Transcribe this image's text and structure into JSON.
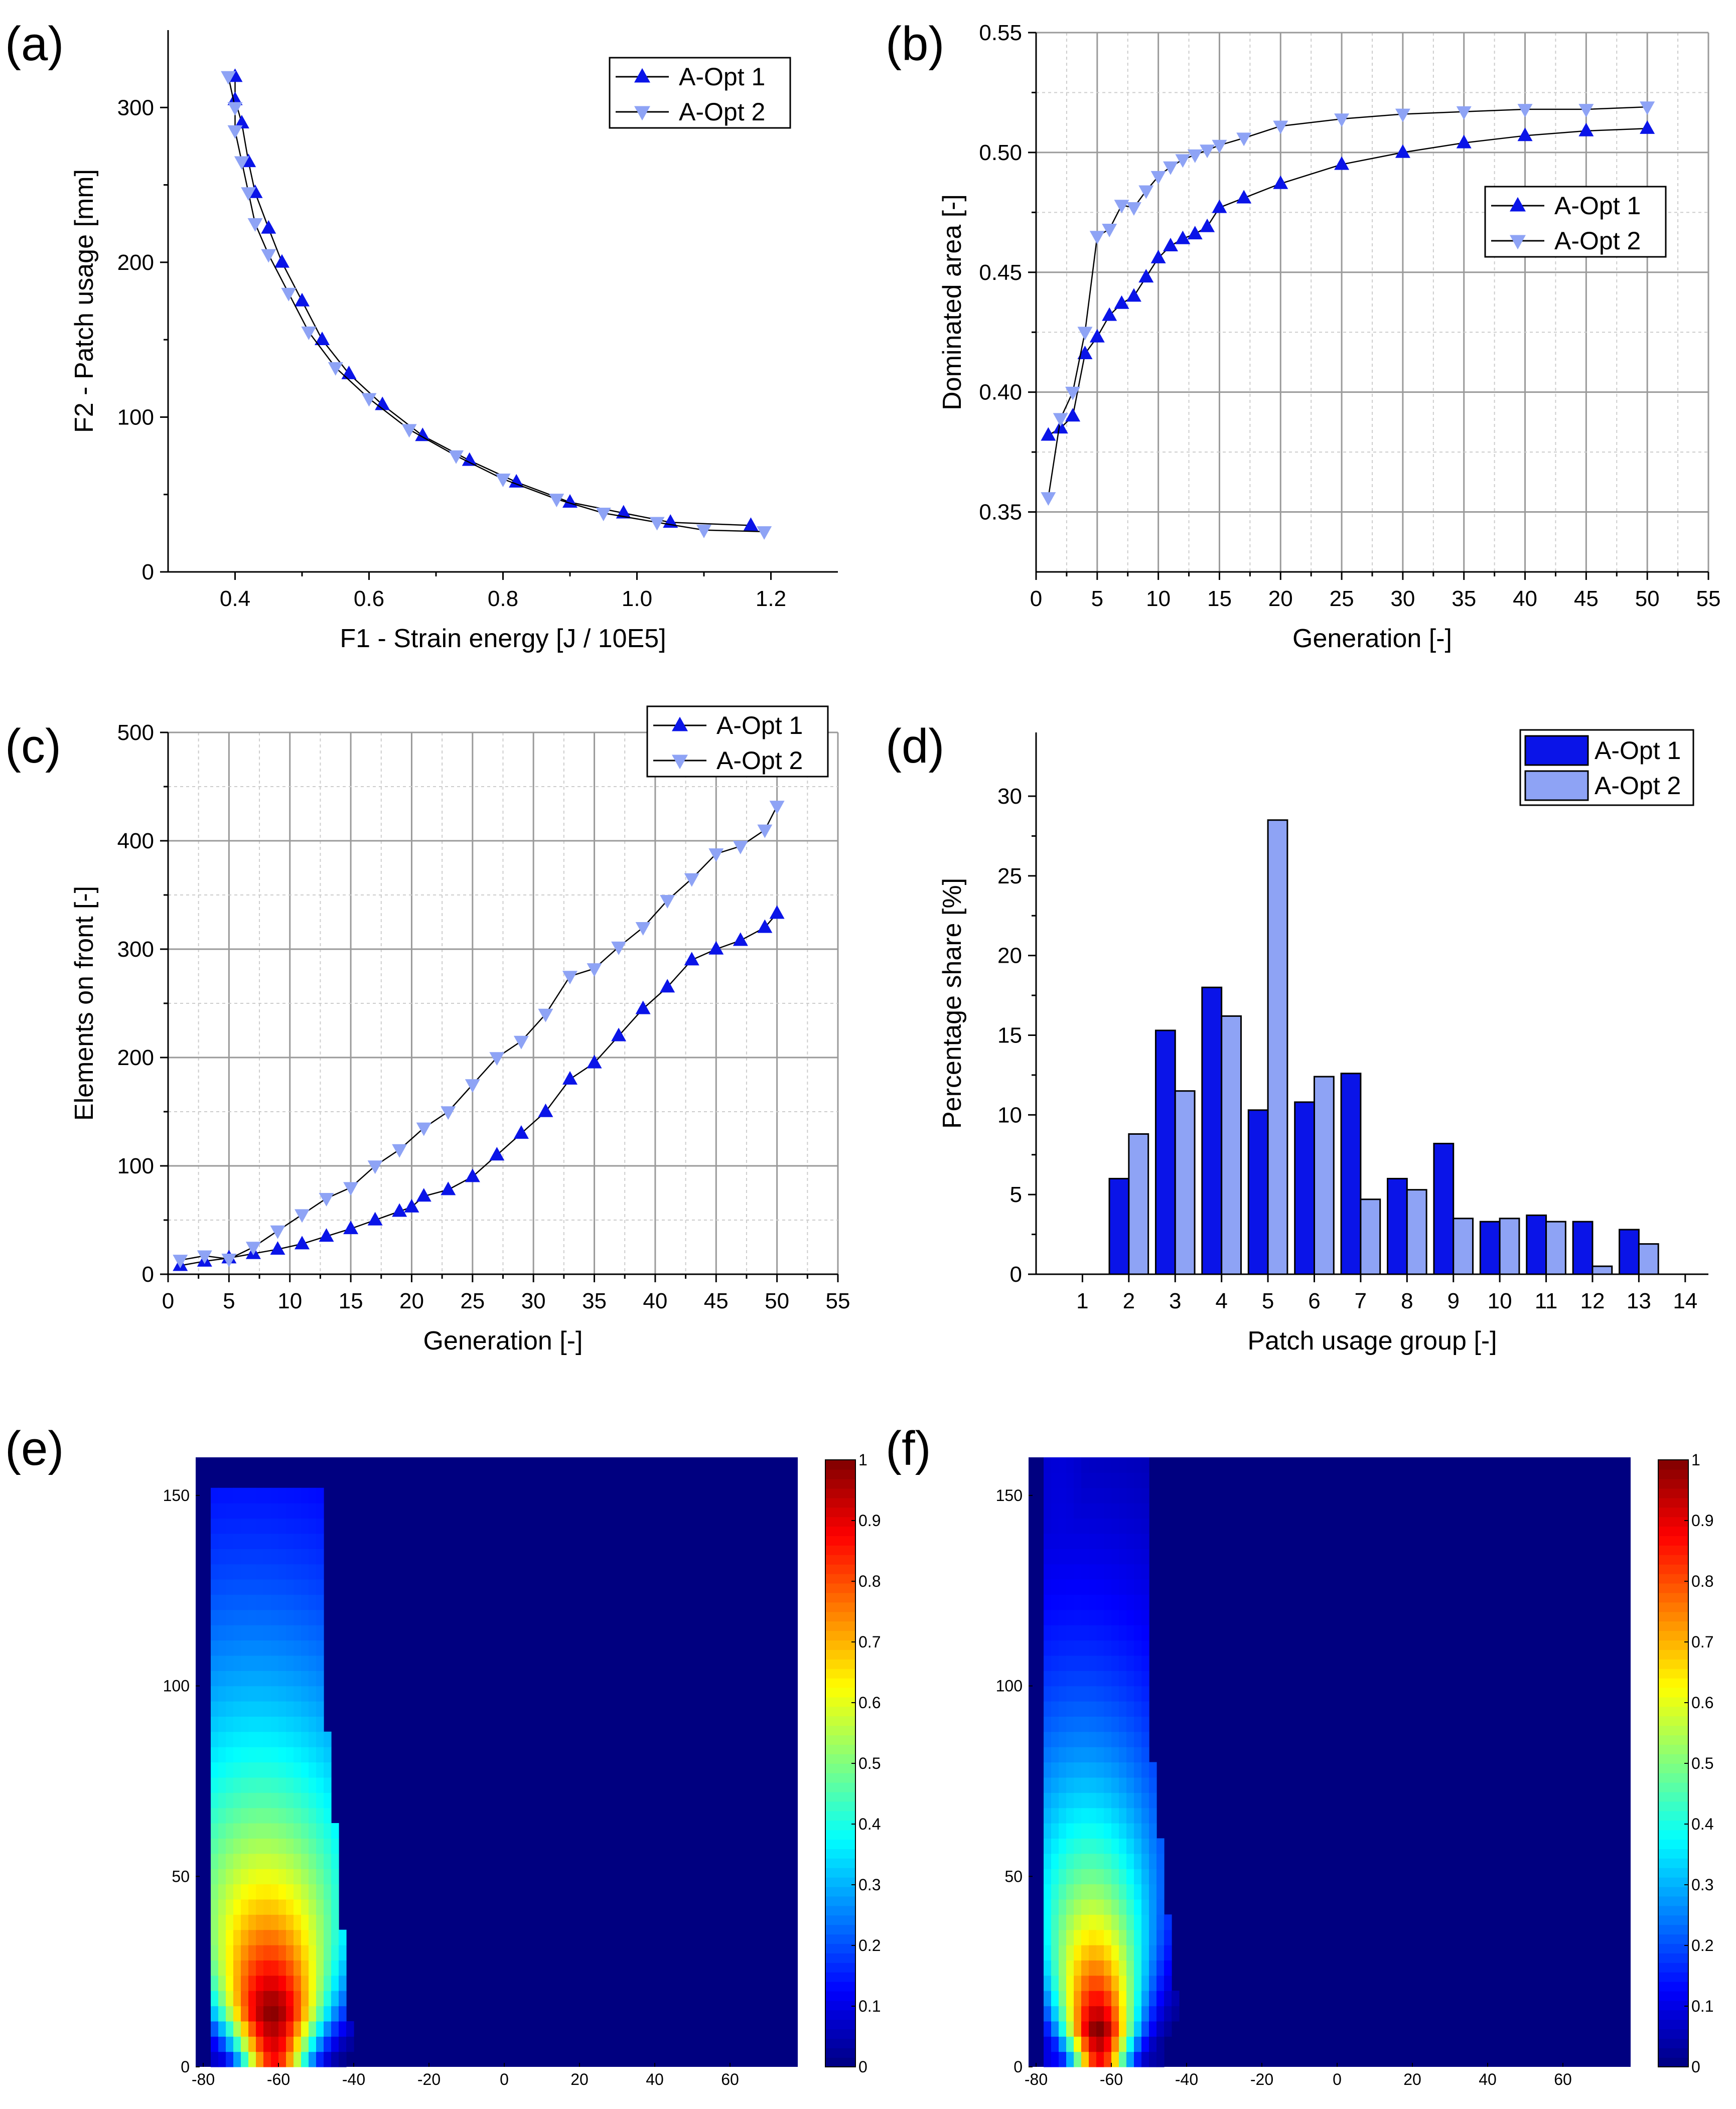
{
  "figure": {
    "panel_labels": [
      "(a)",
      "(b)",
      "(c)",
      "(d)",
      "(e)",
      "(f)"
    ],
    "colors": {
      "opt1": "#0a14e8",
      "opt2": "#8ea3f5",
      "grid": "#9a9a9a",
      "gridMinor": "#cccccc",
      "line": "#000000"
    }
  },
  "chart_data": [
    {
      "id": "a",
      "type": "scatter",
      "xlabel": "F1 - Strain energy [J / 10E5]",
      "ylabel": "F2 - Patch usage [mm]",
      "xlim": [
        0.3,
        1.3
      ],
      "ylim": [
        0,
        350
      ],
      "xticks": [
        0.4,
        0.6,
        0.8,
        1.0,
        1.2
      ],
      "xtick_labels": [
        "0.4",
        "0.6",
        "0.8",
        "1.0",
        "1.2"
      ],
      "yticks": [
        0,
        100,
        200,
        300
      ],
      "ytick_labels": [
        "0",
        "100",
        "200",
        "300"
      ],
      "grid": false,
      "legend": [
        "A-Opt 1",
        "A-Opt 2"
      ],
      "legend_position": "top-right",
      "series": [
        {
          "name": "A-Opt 1",
          "marker": "triangle-up",
          "x": [
            0.4,
            0.4,
            0.41,
            0.42,
            0.43,
            0.45,
            0.47,
            0.5,
            0.53,
            0.57,
            0.62,
            0.68,
            0.75,
            0.82,
            0.9,
            0.98,
            1.05,
            1.17
          ],
          "y": [
            320,
            305,
            290,
            265,
            245,
            222,
            200,
            175,
            150,
            128,
            108,
            88,
            72,
            58,
            45,
            38,
            32,
            30
          ]
        },
        {
          "name": "A-Opt 2",
          "marker": "triangle-down",
          "x": [
            0.39,
            0.4,
            0.4,
            0.41,
            0.42,
            0.43,
            0.45,
            0.48,
            0.51,
            0.55,
            0.6,
            0.66,
            0.73,
            0.8,
            0.88,
            0.95,
            1.03,
            1.1,
            1.19
          ],
          "y": [
            320,
            300,
            285,
            265,
            245,
            225,
            205,
            180,
            155,
            132,
            112,
            92,
            75,
            60,
            47,
            38,
            32,
            27,
            26
          ]
        }
      ]
    },
    {
      "id": "b",
      "type": "line",
      "xlabel": "Generation [-]",
      "ylabel": "Dominated area [-]",
      "xlim": [
        0,
        55
      ],
      "ylim": [
        0.325,
        0.55
      ],
      "xticks": [
        0,
        5,
        10,
        15,
        20,
        25,
        30,
        35,
        40,
        45,
        50,
        55
      ],
      "xtick_labels": [
        "0",
        "5",
        "10",
        "15",
        "20",
        "25",
        "30",
        "35",
        "40",
        "45",
        "50",
        "55"
      ],
      "yticks": [
        0.35,
        0.4,
        0.45,
        0.5,
        0.55
      ],
      "ytick_labels": [
        "0.35",
        "0.40",
        "0.45",
        "0.50",
        "0.55"
      ],
      "grid": true,
      "legend": [
        "A-Opt 1",
        "A-Opt 2"
      ],
      "legend_position": "center-right",
      "series": [
        {
          "name": "A-Opt 1",
          "marker": "triangle-up",
          "x": [
            1,
            2,
            3,
            4,
            5,
            6,
            7,
            8,
            9,
            10,
            11,
            12,
            13,
            14,
            15,
            17,
            20,
            25,
            30,
            35,
            40,
            45,
            50
          ],
          "y": [
            0.382,
            0.385,
            0.39,
            0.416,
            0.423,
            0.432,
            0.437,
            0.44,
            0.448,
            0.456,
            0.461,
            0.464,
            0.466,
            0.469,
            0.477,
            0.481,
            0.487,
            0.495,
            0.5,
            0.504,
            0.507,
            0.509,
            0.51
          ]
        },
        {
          "name": "A-Opt 2",
          "marker": "triangle-down",
          "x": [
            1,
            2,
            3,
            4,
            5,
            6,
            7,
            8,
            9,
            10,
            11,
            12,
            13,
            14,
            15,
            17,
            20,
            25,
            30,
            35,
            40,
            45,
            50
          ],
          "y": [
            0.356,
            0.389,
            0.4,
            0.425,
            0.465,
            0.468,
            0.478,
            0.477,
            0.484,
            0.49,
            0.494,
            0.497,
            0.499,
            0.501,
            0.503,
            0.506,
            0.511,
            0.514,
            0.516,
            0.517,
            0.518,
            0.518,
            0.519
          ]
        }
      ]
    },
    {
      "id": "c",
      "type": "line",
      "xlabel": "Generation [-]",
      "ylabel": "Elements on front [-]",
      "xlim": [
        0,
        55
      ],
      "ylim": [
        0,
        500
      ],
      "xticks": [
        0,
        5,
        10,
        15,
        20,
        25,
        30,
        35,
        40,
        45,
        50,
        55
      ],
      "xtick_labels": [
        "0",
        "5",
        "10",
        "15",
        "20",
        "25",
        "30",
        "35",
        "40",
        "45",
        "50",
        "55"
      ],
      "yticks": [
        0,
        100,
        200,
        300,
        400,
        500
      ],
      "ytick_labels": [
        "0",
        "100",
        "200",
        "300",
        "400",
        "500"
      ],
      "grid": true,
      "legend": [
        "A-Opt 1",
        "A-Opt 2"
      ],
      "legend_position": "top-right",
      "series": [
        {
          "name": "A-Opt 1",
          "marker": "triangle-up",
          "x": [
            1,
            3,
            5,
            7,
            9,
            11,
            13,
            15,
            17,
            19,
            20,
            21,
            23,
            25,
            27,
            29,
            31,
            33,
            35,
            37,
            39,
            41,
            43,
            45,
            47,
            49,
            50
          ],
          "y": [
            8,
            12,
            15,
            19,
            23,
            28,
            35,
            42,
            50,
            58,
            62,
            72,
            78,
            90,
            110,
            130,
            150,
            180,
            195,
            220,
            245,
            265,
            290,
            300,
            308,
            320,
            333
          ]
        },
        {
          "name": "A-Opt 2",
          "marker": "triangle-down",
          "x": [
            1,
            3,
            5,
            7,
            9,
            11,
            13,
            15,
            17,
            19,
            21,
            23,
            25,
            27,
            29,
            31,
            33,
            35,
            37,
            39,
            41,
            43,
            45,
            47,
            49,
            50
          ],
          "y": [
            13,
            17,
            14,
            25,
            40,
            55,
            70,
            80,
            100,
            115,
            135,
            150,
            175,
            200,
            215,
            240,
            275,
            282,
            302,
            320,
            345,
            365,
            388,
            395,
            410,
            432
          ]
        }
      ]
    },
    {
      "id": "d",
      "type": "bar",
      "xlabel": "Patch usage group [-]",
      "ylabel": "Percentage share [%]",
      "xlim": [
        0,
        14.5
      ],
      "ylim": [
        0,
        34
      ],
      "xticks": [
        1,
        2,
        3,
        4,
        5,
        6,
        7,
        8,
        9,
        10,
        11,
        12,
        13,
        14
      ],
      "xtick_labels": [
        "1",
        "2",
        "3",
        "4",
        "5",
        "6",
        "7",
        "8",
        "9",
        "10",
        "11",
        "12",
        "13",
        "14"
      ],
      "yticks": [
        0,
        5,
        10,
        15,
        20,
        25,
        30
      ],
      "ytick_labels": [
        "0",
        "5",
        "10",
        "15",
        "20",
        "25",
        "30"
      ],
      "grid": false,
      "legend": [
        "A-Opt 1",
        "A-Opt 2"
      ],
      "legend_position": "top-right",
      "categories": [
        2,
        3,
        4,
        5,
        6,
        7,
        8,
        9,
        10,
        11,
        12,
        13
      ],
      "series": [
        {
          "name": "A-Opt 1",
          "values": [
            6.0,
            15.3,
            18.0,
            10.3,
            10.8,
            12.6,
            6.0,
            8.2,
            3.3,
            3.7,
            3.3,
            2.8
          ]
        },
        {
          "name": "A-Opt 2",
          "values": [
            8.8,
            11.5,
            16.2,
            28.5,
            12.4,
            4.7,
            5.3,
            3.5,
            3.5,
            3.3,
            0.5,
            1.9
          ]
        }
      ]
    },
    {
      "id": "e",
      "type": "heatmap",
      "xlim": [
        -82,
        78
      ],
      "ylim": [
        0,
        160
      ],
      "xticks": [
        -80,
        -60,
        -40,
        -20,
        0,
        20,
        40,
        60
      ],
      "xtick_labels": [
        "-80",
        "-60",
        "-40",
        "-20",
        "0",
        "20",
        "40",
        "60"
      ],
      "yticks": [
        0,
        50,
        100,
        150
      ],
      "ytick_labels": [
        "0",
        "50",
        "100",
        "150"
      ],
      "colorbar_ticks": [
        0,
        0.1,
        0.2,
        0.3,
        0.4,
        0.5,
        0.6,
        0.7,
        0.8,
        0.9,
        1
      ],
      "colorbar_labels": [
        "0",
        "0.1",
        "0.2",
        "0.3",
        "0.4",
        "0.5",
        "0.6",
        "0.7",
        "0.8",
        "0.9",
        "1"
      ],
      "peak_x": -61,
      "peak_y": 15,
      "peak_spread_x": 6,
      "spread_growth": 0.05,
      "decay_height": 70,
      "left_edge": -78,
      "right_edge_top": -52,
      "right_edge_bottom": -44,
      "top_edge": 150
    },
    {
      "id": "f",
      "type": "heatmap",
      "xlim": [
        -82,
        78
      ],
      "ylim": [
        0,
        160
      ],
      "xticks": [
        -80,
        -60,
        -40,
        -20,
        0,
        20,
        40,
        60
      ],
      "xtick_labels": [
        "-80",
        "-60",
        "-40",
        "-20",
        "0",
        "20",
        "40",
        "60"
      ],
      "yticks": [
        0,
        50,
        100,
        150
      ],
      "ytick_labels": [
        "0",
        "50",
        "100",
        "150"
      ],
      "colorbar_ticks": [
        0,
        0.1,
        0.2,
        0.3,
        0.4,
        0.5,
        0.6,
        0.7,
        0.8,
        0.9,
        1
      ],
      "colorbar_labels": [
        "0",
        "0.1",
        "0.2",
        "0.3",
        "0.4",
        "0.5",
        "0.6",
        "0.7",
        "0.8",
        "0.9",
        "1"
      ],
      "peak_x": -63,
      "peak_y": 10,
      "peak_spread_x": 5,
      "spread_growth": 0.04,
      "decay_height": 55,
      "left_edge": -78,
      "right_edge_top": -55,
      "right_edge_bottom": -45,
      "top_edge": 160
    }
  ]
}
